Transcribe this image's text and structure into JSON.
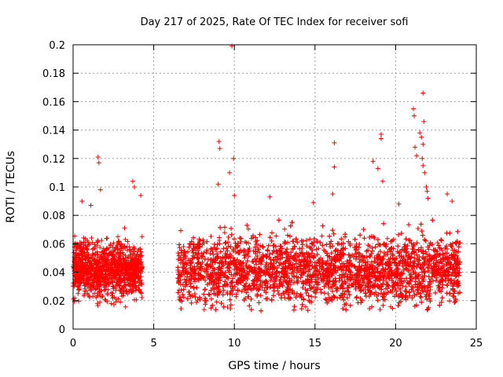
{
  "chart_data": {
    "type": "scatter",
    "title": "Day 217 of 2025, Rate Of TEC Index for receiver sofi",
    "xlabel": "GPS time / hours",
    "ylabel": "ROTI / TECUs",
    "xlim": [
      0,
      25
    ],
    "ylim": [
      0,
      0.2
    ],
    "x_ticks": [
      0,
      5,
      10,
      15,
      20,
      25
    ],
    "x_tick_labels": [
      "0",
      "5",
      "10",
      "15",
      "20",
      "25"
    ],
    "y_ticks": [
      0,
      0.02,
      0.04,
      0.06,
      0.08,
      0.1,
      0.12,
      0.14,
      0.16,
      0.18,
      0.2
    ],
    "y_tick_labels": [
      "0",
      "0.02",
      "0.04",
      "0.06",
      "0.08",
      "0.1",
      "0.12",
      "0.14",
      "0.16",
      "0.18",
      "0.2"
    ],
    "grid": true,
    "marker": "plus",
    "color": "#ff0000",
    "segments": [
      {
        "x_start": 0.0,
        "x_end": 4.3,
        "y_min": 0.015,
        "y_max": 0.075,
        "y_center": 0.042
      },
      {
        "x_start": 6.5,
        "x_end": 24.0,
        "y_min": 0.012,
        "y_max": 0.085,
        "y_center": 0.042
      }
    ],
    "outliers": [
      {
        "x": 1.55,
        "y": 0.121
      },
      {
        "x": 1.6,
        "y": 0.117
      },
      {
        "x": 1.7,
        "y": 0.098
      },
      {
        "x": 3.7,
        "y": 0.104
      },
      {
        "x": 3.8,
        "y": 0.1
      },
      {
        "x": 4.2,
        "y": 0.094
      },
      {
        "x": 0.55,
        "y": 0.09
      },
      {
        "x": 1.1,
        "y": 0.087
      },
      {
        "x": 9.05,
        "y": 0.132
      },
      {
        "x": 9.1,
        "y": 0.127
      },
      {
        "x": 9.0,
        "y": 0.102
      },
      {
        "x": 9.85,
        "y": 0.199
      },
      {
        "x": 9.95,
        "y": 0.12
      },
      {
        "x": 9.7,
        "y": 0.11
      },
      {
        "x": 10.0,
        "y": 0.094
      },
      {
        "x": 12.2,
        "y": 0.093
      },
      {
        "x": 14.9,
        "y": 0.089
      },
      {
        "x": 16.2,
        "y": 0.131
      },
      {
        "x": 16.2,
        "y": 0.114
      },
      {
        "x": 16.1,
        "y": 0.095
      },
      {
        "x": 18.6,
        "y": 0.118
      },
      {
        "x": 18.9,
        "y": 0.113
      },
      {
        "x": 19.1,
        "y": 0.137
      },
      {
        "x": 19.1,
        "y": 0.134
      },
      {
        "x": 19.2,
        "y": 0.104
      },
      {
        "x": 21.1,
        "y": 0.155
      },
      {
        "x": 21.15,
        "y": 0.15
      },
      {
        "x": 21.7,
        "y": 0.166
      },
      {
        "x": 21.75,
        "y": 0.146
      },
      {
        "x": 21.5,
        "y": 0.138
      },
      {
        "x": 21.6,
        "y": 0.135
      },
      {
        "x": 21.7,
        "y": 0.13
      },
      {
        "x": 21.2,
        "y": 0.128
      },
      {
        "x": 21.3,
        "y": 0.122
      },
      {
        "x": 21.65,
        "y": 0.12
      },
      {
        "x": 21.7,
        "y": 0.115
      },
      {
        "x": 21.8,
        "y": 0.11
      },
      {
        "x": 21.9,
        "y": 0.1
      },
      {
        "x": 21.95,
        "y": 0.097
      },
      {
        "x": 22.0,
        "y": 0.092
      },
      {
        "x": 23.2,
        "y": 0.095
      },
      {
        "x": 23.5,
        "y": 0.09
      },
      {
        "x": 20.2,
        "y": 0.088
      }
    ]
  }
}
